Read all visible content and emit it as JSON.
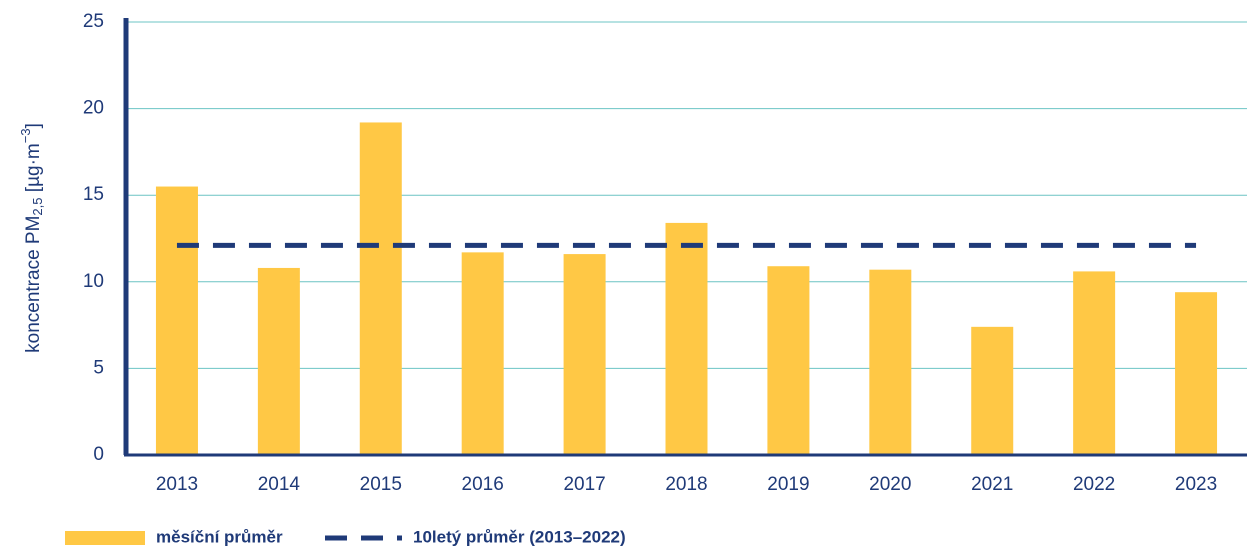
{
  "chart_data": {
    "type": "bar",
    "y_label": [
      "koncentrace PM",
      "2,5",
      " [µg·m",
      "−3",
      "]"
    ],
    "categories": [
      "2013",
      "2014",
      "2015",
      "2016",
      "2017",
      "2018",
      "2019",
      "2020",
      "2021",
      "2022",
      "2023"
    ],
    "series": [
      {
        "name": "měsíční průměr",
        "color": "#ffc845",
        "values": [
          15.5,
          10.8,
          19.2,
          11.7,
          11.6,
          13.4,
          10.9,
          10.7,
          7.4,
          10.6,
          9.4
        ]
      }
    ],
    "average": {
      "name": "10letý průměr (2013–2022)",
      "color": "#1f3a78",
      "value": 12.1
    },
    "ylim": [
      0,
      25
    ],
    "yticks": [
      0,
      5,
      10,
      15,
      20,
      25
    ],
    "grid": true
  }
}
